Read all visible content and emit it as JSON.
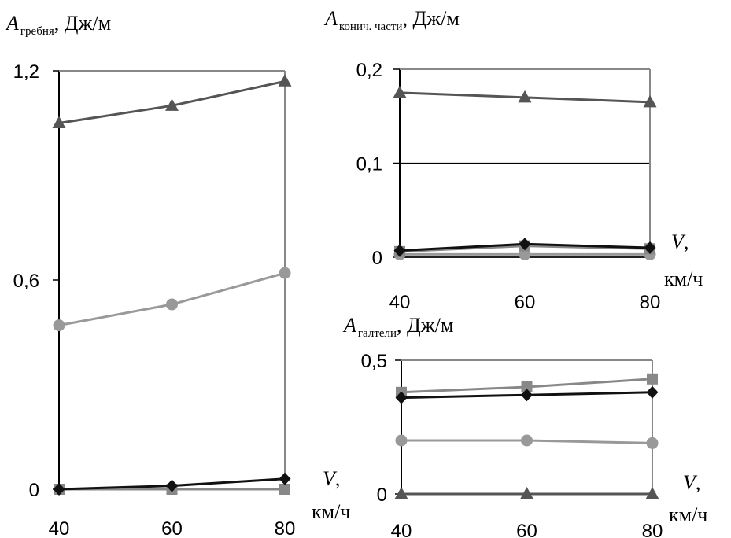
{
  "chart_data": [
    {
      "id": "greben",
      "type": "line",
      "ylabel_main": "A",
      "ylabel_sub": "гребня",
      "ylabel_unit": ", Дж/м",
      "xlabel_main": "V",
      "xlabel_comma": ",",
      "xlabel_unit": "км/ч",
      "x": [
        40,
        60,
        80
      ],
      "xticks": [
        "40",
        "60",
        "80"
      ],
      "yticks": [
        {
          "value": 0,
          "label": "0"
        },
        {
          "value": 0.6,
          "label": "0,6"
        },
        {
          "value": 1.2,
          "label": "1,2"
        }
      ],
      "ylim": [
        0,
        1.2
      ],
      "gridlines": [],
      "series": [
        {
          "marker": "triangle",
          "color": "#555555",
          "values": [
            1.05,
            1.1,
            1.17
          ]
        },
        {
          "marker": "circle",
          "color": "#999999",
          "values": [
            0.47,
            0.53,
            0.62
          ]
        },
        {
          "marker": "square",
          "color": "#888888",
          "values": [
            0.0,
            0.0,
            0.0
          ]
        },
        {
          "marker": "diamond",
          "color": "#111111",
          "values": [
            0.0,
            0.01,
            0.03
          ]
        }
      ]
    },
    {
      "id": "konich",
      "type": "line",
      "ylabel_main": "A",
      "ylabel_sub": "конич. части",
      "ylabel_unit": ", Дж/м",
      "xlabel_main": "V",
      "xlabel_comma": ",",
      "xlabel_unit": "км/ч",
      "x": [
        40,
        60,
        80
      ],
      "xticks": [
        "40",
        "60",
        "80"
      ],
      "yticks": [
        {
          "value": 0,
          "label": "0"
        },
        {
          "value": 0.1,
          "label": "0,1"
        },
        {
          "value": 0.2,
          "label": "0,2"
        }
      ],
      "ylim": [
        0,
        0.2
      ],
      "gridlines": [
        0.1
      ],
      "series": [
        {
          "marker": "triangle",
          "color": "#555555",
          "values": [
            0.175,
            0.17,
            0.165
          ]
        },
        {
          "marker": "circle",
          "color": "#999999",
          "values": [
            0.003,
            0.003,
            0.003
          ]
        },
        {
          "marker": "square",
          "color": "#888888",
          "values": [
            0.006,
            0.012,
            0.009
          ]
        },
        {
          "marker": "diamond",
          "color": "#111111",
          "values": [
            0.007,
            0.014,
            0.01
          ]
        }
      ]
    },
    {
      "id": "galtel",
      "type": "line",
      "ylabel_main": "A",
      "ylabel_sub": "галтели",
      "ylabel_unit": ", Дж/м",
      "xlabel_main": "V",
      "xlabel_comma": ",",
      "xlabel_unit": "км/ч",
      "x": [
        40,
        60,
        80
      ],
      "xticks": [
        "40",
        "60",
        "80"
      ],
      "yticks": [
        {
          "value": 0,
          "label": "0"
        },
        {
          "value": 0.5,
          "label": "0,5"
        }
      ],
      "ylim": [
        0,
        0.5
      ],
      "gridlines": [],
      "series": [
        {
          "marker": "square",
          "color": "#888888",
          "values": [
            0.38,
            0.4,
            0.43
          ]
        },
        {
          "marker": "diamond",
          "color": "#111111",
          "values": [
            0.36,
            0.37,
            0.38
          ]
        },
        {
          "marker": "circle",
          "color": "#999999",
          "values": [
            0.2,
            0.2,
            0.19
          ]
        },
        {
          "marker": "triangle",
          "color": "#555555",
          "values": [
            0.0,
            0.0,
            0.0
          ]
        }
      ]
    }
  ]
}
